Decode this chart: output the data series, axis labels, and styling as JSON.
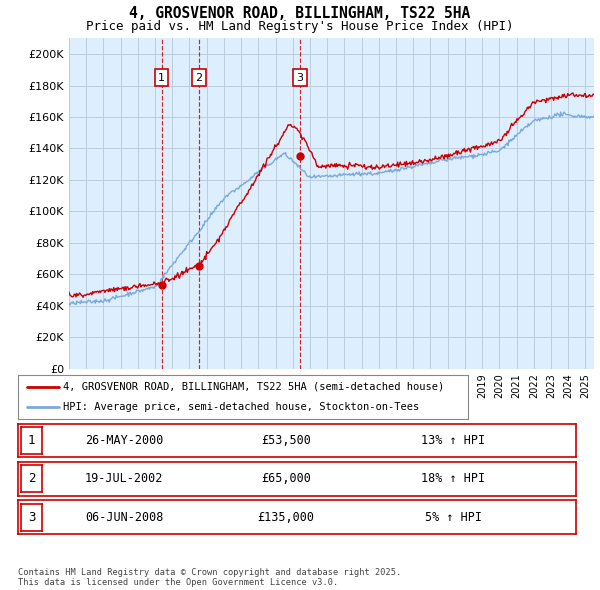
{
  "title_line1": "4, GROSVENOR ROAD, BILLINGHAM, TS22 5HA",
  "title_line2": "Price paid vs. HM Land Registry's House Price Index (HPI)",
  "ylim": [
    0,
    210000
  ],
  "yticks": [
    0,
    20000,
    40000,
    60000,
    80000,
    100000,
    120000,
    140000,
    160000,
    180000,
    200000
  ],
  "ytick_labels": [
    "£0",
    "£20K",
    "£40K",
    "£60K",
    "£80K",
    "£100K",
    "£120K",
    "£140K",
    "£160K",
    "£180K",
    "£200K"
  ],
  "line1_color": "#cc0000",
  "line2_color": "#7aaadd",
  "chart_bg_color": "#ddeeff",
  "background_color": "#ffffff",
  "grid_color": "#bbccdd",
  "vline_color": "#cc0000",
  "sales": [
    {
      "year": 2000.38,
      "price": 53500,
      "label": "1"
    },
    {
      "year": 2002.54,
      "price": 65000,
      "label": "2"
    },
    {
      "year": 2008.43,
      "price": 135000,
      "label": "3"
    }
  ],
  "legend_line1": "4, GROSVENOR ROAD, BILLINGHAM, TS22 5HA (semi-detached house)",
  "legend_line2": "HPI: Average price, semi-detached house, Stockton-on-Tees",
  "table_rows": [
    {
      "num": "1",
      "date": "26-MAY-2000",
      "price": "£53,500",
      "hpi": "13% ↑ HPI"
    },
    {
      "num": "2",
      "date": "19-JUL-2002",
      "price": "£65,000",
      "hpi": "18% ↑ HPI"
    },
    {
      "num": "3",
      "date": "06-JUN-2008",
      "price": "£135,000",
      "hpi": "5% ↑ HPI"
    }
  ],
  "footnote": "Contains HM Land Registry data © Crown copyright and database right 2025.\nThis data is licensed under the Open Government Licence v3.0.",
  "xmin": 1995,
  "xmax": 2025.5
}
